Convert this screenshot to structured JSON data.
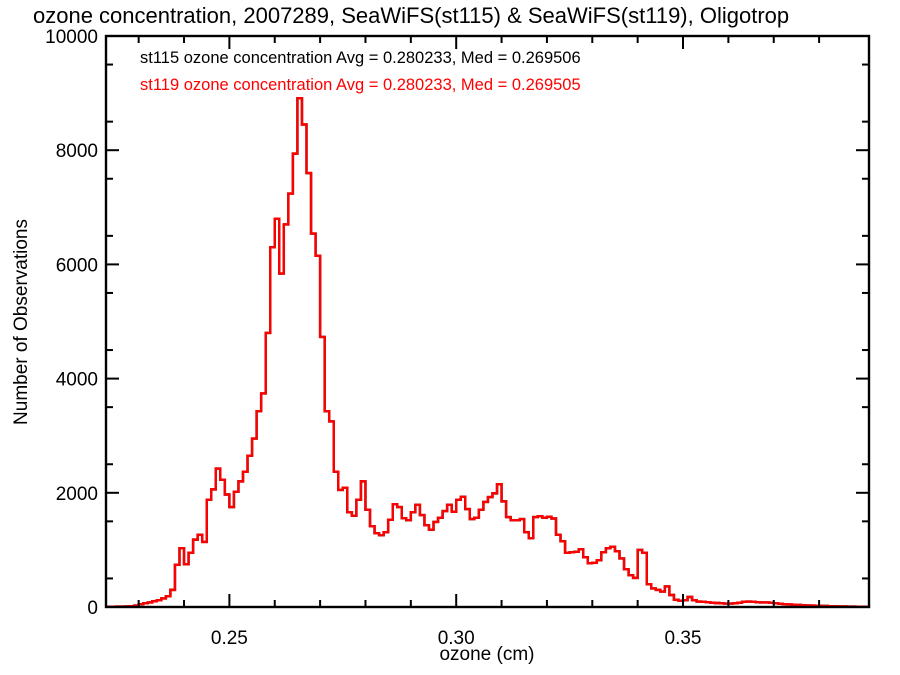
{
  "title": "ozone concentration, 2007289, SeaWiFS(st115) & SeaWiFS(st119), Oligotrop",
  "legend": {
    "line1": "st115 ozone concentration Avg = 0.280233, Med = 0.269506",
    "line1_color": "#000000",
    "line2": "st119 ozone concentration Avg = 0.280233, Med = 0.269505",
    "line2_color": "#ff0000"
  },
  "chart_data": {
    "type": "line",
    "style": "histogram-step",
    "title": "ozone concentration, 2007289, SeaWiFS(st115) & SeaWiFS(st119), Oligotrop",
    "xlabel": "ozone (cm)",
    "ylabel": "Number of Observations",
    "xlim": [
      0.2228,
      0.391
    ],
    "ylim": [
      0,
      10000
    ],
    "grid": false,
    "legend_position": "top-left-inside-text-only",
    "background": "#ffffff",
    "frame_color": "#000000",
    "xticks": [
      {
        "value": 0.25,
        "label": "0.25"
      },
      {
        "value": 0.3,
        "label": "0.30"
      },
      {
        "value": 0.35,
        "label": "0.35"
      }
    ],
    "x_minor_ticks": [
      0.23,
      0.24,
      0.26,
      0.27,
      0.28,
      0.29,
      0.31,
      0.32,
      0.33,
      0.34,
      0.36,
      0.37,
      0.38
    ],
    "yticks": [
      {
        "value": 0,
        "label": "0"
      },
      {
        "value": 2000,
        "label": "2000"
      },
      {
        "value": 4000,
        "label": "4000"
      },
      {
        "value": 6000,
        "label": "6000"
      },
      {
        "value": 8000,
        "label": "8000"
      },
      {
        "value": 10000,
        "label": "10000"
      }
    ],
    "y_minor_ticks": [
      500,
      1500,
      2500,
      3500,
      4500,
      5500,
      6500,
      7500,
      8500,
      9500
    ],
    "bin_width": 0.001,
    "x_start": 0.223,
    "series": [
      {
        "key": "st115",
        "name": "st115 ozone concentration",
        "color": "#000000",
        "avg": "0.280233",
        "med": "0.269506",
        "values": [
          4,
          6,
          8,
          8,
          10,
          14,
          25,
          50,
          65,
          80,
          100,
          120,
          150,
          190,
          300,
          740,
          1030,
          750,
          950,
          1180,
          1265,
          1140,
          1880,
          2060,
          2425,
          2230,
          1970,
          1750,
          2020,
          2200,
          2370,
          2650,
          2950,
          3430,
          3740,
          4800,
          6300,
          6800,
          5840,
          6700,
          7240,
          7940,
          8910,
          8450,
          7600,
          6540,
          6150,
          4730,
          3430,
          3250,
          2370,
          2050,
          2090,
          1660,
          1600,
          1880,
          2200,
          1705,
          1415,
          1290,
          1257,
          1310,
          1530,
          1800,
          1750,
          1555,
          1520,
          1660,
          1790,
          1610,
          1430,
          1354,
          1490,
          1564,
          1680,
          1790,
          1670,
          1880,
          1930,
          1715,
          1540,
          1564,
          1705,
          1840,
          1925,
          1990,
          2150,
          1850,
          1575,
          1520,
          1520,
          1540,
          1310,
          1205,
          1575,
          1590,
          1565,
          1580,
          1550,
          1265,
          1150,
          950,
          958,
          967,
          1010,
          870,
          765,
          775,
          820,
          958,
          1030,
          1055,
          975,
          850,
          660,
          555,
          510,
          1000,
          950,
          400,
          325,
          300,
          270,
          360,
          210,
          125,
          110,
          120,
          175,
          120,
          95,
          90,
          85,
          75,
          70,
          65,
          60,
          60,
          65,
          75,
          90,
          95,
          90,
          85,
          80,
          80,
          75,
          65,
          55,
          50,
          45,
          40,
          35,
          30,
          28,
          25,
          22,
          20,
          18,
          15,
          12,
          10,
          10,
          8,
          8,
          6,
          5,
          5,
          4
        ]
      },
      {
        "key": "st119",
        "name": "st119 ozone concentration",
        "color": "#ff0000",
        "avg": "0.280233",
        "med": "0.269505",
        "values": [
          4,
          6,
          8,
          8,
          10,
          14,
          25,
          50,
          65,
          80,
          100,
          120,
          150,
          190,
          300,
          740,
          1030,
          750,
          950,
          1180,
          1265,
          1140,
          1880,
          2060,
          2425,
          2230,
          1970,
          1750,
          2020,
          2200,
          2370,
          2650,
          2950,
          3430,
          3740,
          4800,
          6300,
          6800,
          5840,
          6700,
          7240,
          7940,
          8910,
          8450,
          7600,
          6540,
          6150,
          4730,
          3430,
          3250,
          2370,
          2050,
          2090,
          1660,
          1600,
          1880,
          2200,
          1705,
          1415,
          1290,
          1257,
          1310,
          1530,
          1800,
          1750,
          1555,
          1520,
          1660,
          1790,
          1610,
          1430,
          1354,
          1490,
          1564,
          1680,
          1790,
          1670,
          1880,
          1930,
          1715,
          1540,
          1564,
          1705,
          1840,
          1925,
          1990,
          2150,
          1850,
          1575,
          1520,
          1520,
          1540,
          1310,
          1205,
          1575,
          1590,
          1565,
          1580,
          1550,
          1265,
          1150,
          950,
          958,
          967,
          1010,
          870,
          765,
          775,
          820,
          958,
          1030,
          1055,
          975,
          850,
          660,
          555,
          510,
          1000,
          950,
          400,
          325,
          300,
          270,
          360,
          210,
          125,
          110,
          120,
          175,
          120,
          95,
          90,
          85,
          75,
          70,
          65,
          60,
          60,
          65,
          75,
          90,
          95,
          90,
          85,
          80,
          80,
          75,
          65,
          55,
          50,
          45,
          40,
          35,
          30,
          28,
          25,
          22,
          20,
          18,
          15,
          12,
          10,
          10,
          8,
          8,
          6,
          5,
          5,
          4
        ]
      }
    ]
  }
}
